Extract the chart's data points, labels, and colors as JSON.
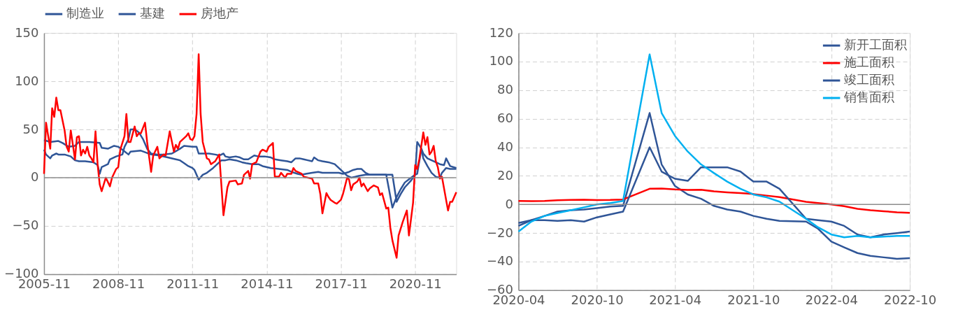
{
  "chart_data": [
    {
      "type": "line",
      "xlim": [
        "2005-11",
        "2022-07"
      ],
      "xticks": [
        "2005-11",
        "2008-11",
        "2011-11",
        "2014-11",
        "2017-11",
        "2020-11"
      ],
      "ylim": [
        -100,
        150
      ],
      "yticks": [
        -100,
        -50,
        0,
        50,
        100,
        150
      ],
      "grid": true,
      "legend": "top",
      "ref_lines": [
        {
          "axis": "y",
          "value": 0,
          "color": "#8c8c8c"
        }
      ],
      "series": [
        {
          "name": "制造业",
          "color": "#2f5597",
          "x": [
            "2005-11",
            "2006-02",
            "2006-06",
            "2006-08",
            "2006-11",
            "2007-02",
            "2007-04",
            "2007-09",
            "2008-02",
            "2008-03",
            "2008-06",
            "2008-09",
            "2008-11",
            "2009-01",
            "2009-04",
            "2009-05",
            "2009-10",
            "2010-03",
            "2010-07",
            "2010-11",
            "2011-03",
            "2011-05",
            "2011-07",
            "2011-09",
            "2011-11",
            "2011-12",
            "2012-02",
            "2012-04",
            "2012-06",
            "2012-09",
            "2012-11",
            "2013-01",
            "2013-03",
            "2013-05",
            "2013-08",
            "2013-11",
            "2014-01",
            "2014-04",
            "2014-07",
            "2014-09",
            "2015-01",
            "2015-05",
            "2015-09",
            "2015-11",
            "2016-02",
            "2016-04",
            "2016-06",
            "2016-09",
            "2016-12",
            "2017-02",
            "2017-04",
            "2017-07",
            "2017-10",
            "2017-12",
            "2018-03",
            "2018-05",
            "2018-07",
            "2018-09",
            "2018-11",
            "2019-01",
            "2019-03",
            "2019-06",
            "2019-09",
            "2019-12",
            "2020-02",
            "2020-04",
            "2020-06",
            "2020-09",
            "2020-11",
            "2020-12",
            "2021-02",
            "2021-03",
            "2021-05",
            "2021-07",
            "2021-09",
            "2021-11",
            "2021-12",
            "2022-02",
            "2022-04",
            "2022-07"
          ],
          "values": [
            39,
            37,
            38,
            36,
            32,
            33,
            37,
            37,
            36,
            31,
            30,
            33,
            32,
            29,
            24,
            27,
            28,
            24,
            23,
            21,
            19,
            18,
            15,
            12,
            10,
            8,
            -2,
            3,
            5,
            10,
            14,
            18,
            18,
            19,
            18,
            16,
            15,
            14,
            14,
            12,
            10,
            9,
            8,
            6,
            4,
            3,
            4,
            5,
            6,
            5,
            5,
            5,
            5,
            4,
            6,
            8,
            9,
            9,
            5,
            3,
            3,
            3,
            3,
            -31,
            -20,
            -12,
            -5,
            0,
            3,
            37,
            30,
            20,
            12,
            5,
            1,
            0,
            5,
            10,
            9,
            9
          ]
        },
        {
          "name": "基建",
          "color": "#2f5597",
          "x": [
            "2005-11",
            "2005-12",
            "2006-02",
            "2006-03",
            "2006-05",
            "2006-06",
            "2006-09",
            "2006-12",
            "2007-02",
            "2007-04",
            "2007-07",
            "2007-11",
            "2008-01",
            "2008-02",
            "2008-03",
            "2008-06",
            "2008-07",
            "2008-10",
            "2009-01",
            "2009-02",
            "2009-04",
            "2009-05",
            "2009-07",
            "2009-09",
            "2009-11",
            "2010-01",
            "2010-03",
            "2010-06",
            "2010-09",
            "2011-01",
            "2011-05",
            "2011-07",
            "2011-11",
            "2012-01",
            "2012-02",
            "2012-07",
            "2012-10",
            "2012-12",
            "2013-02",
            "2013-03",
            "2013-05",
            "2013-08",
            "2013-10",
            "2013-12",
            "2014-02",
            "2014-05",
            "2014-07",
            "2014-10",
            "2015-01",
            "2015-03",
            "2015-06",
            "2015-09",
            "2015-11",
            "2016-01",
            "2016-03",
            "2016-05",
            "2016-07",
            "2016-09",
            "2016-10",
            "2016-12",
            "2017-02",
            "2017-05",
            "2017-08",
            "2017-10",
            "2017-12",
            "2018-02",
            "2018-04",
            "2018-06",
            "2018-08",
            "2018-11",
            "2019-03",
            "2019-08",
            "2019-12",
            "2020-02",
            "2020-04",
            "2020-06",
            "2020-09",
            "2020-11",
            "2020-12",
            "2021-02",
            "2021-03",
            "2021-05",
            "2021-07",
            "2021-09",
            "2021-11",
            "2022-01",
            "2022-02",
            "2022-04",
            "2022-07"
          ],
          "values": [
            29,
            24,
            20,
            23,
            25,
            24,
            24,
            22,
            18,
            17,
            17,
            16,
            13,
            4,
            11,
            14,
            19,
            22,
            24,
            32,
            40,
            50,
            50,
            47,
            40,
            30,
            25,
            24,
            24,
            25,
            30,
            33,
            32,
            32,
            25,
            25,
            24,
            23,
            25,
            22,
            21,
            22,
            21,
            19,
            19,
            23,
            22,
            22,
            21,
            19,
            18,
            17,
            16,
            20,
            20,
            19,
            18,
            17,
            21,
            18,
            17,
            16,
            14,
            10,
            6,
            2,
            0,
            1,
            2,
            3,
            3,
            3,
            3,
            -25,
            -17,
            -10,
            -3,
            3,
            4,
            30,
            25,
            20,
            18,
            16,
            14,
            13,
            20,
            12,
            10
          ]
        },
        {
          "name": "房地产",
          "color": "#ff0000",
          "x": [
            "2005-11",
            "2005-12",
            "2006-02",
            "2006-03",
            "2006-04",
            "2006-05",
            "2006-06",
            "2006-07",
            "2006-09",
            "2006-10",
            "2006-11",
            "2006-12",
            "2007-02",
            "2007-03",
            "2007-04",
            "2007-05",
            "2007-06",
            "2007-07",
            "2007-08",
            "2007-09",
            "2007-10",
            "2007-11",
            "2007-12",
            "2008-01",
            "2008-02",
            "2008-03",
            "2008-05",
            "2008-07",
            "2008-08",
            "2008-10",
            "2008-11",
            "2008-12",
            "2009-02",
            "2009-03",
            "2009-04",
            "2009-05",
            "2009-07",
            "2009-08",
            "2009-09",
            "2009-10",
            "2009-12",
            "2010-01",
            "2010-03",
            "2010-04",
            "2010-06",
            "2010-07",
            "2010-08",
            "2010-09",
            "2010-10",
            "2010-12",
            "2011-02",
            "2011-03",
            "2011-04",
            "2011-05",
            "2011-06",
            "2011-08",
            "2011-09",
            "2011-10",
            "2011-11",
            "2011-12",
            "2012-01",
            "2012-02",
            "2012-03",
            "2012-04",
            "2012-06",
            "2012-07",
            "2012-08",
            "2012-10",
            "2012-12",
            "2013-02",
            "2013-04",
            "2013-05",
            "2013-08",
            "2013-09",
            "2013-11",
            "2013-12",
            "2014-02",
            "2014-03",
            "2014-04",
            "2014-06",
            "2014-08",
            "2014-09",
            "2014-11",
            "2014-12",
            "2015-02",
            "2015-03",
            "2015-05",
            "2015-06",
            "2015-08",
            "2015-09",
            "2015-11",
            "2015-12",
            "2016-01",
            "2016-04",
            "2016-05",
            "2016-07",
            "2016-09",
            "2016-10",
            "2016-12",
            "2017-01",
            "2017-02",
            "2017-04",
            "2017-05",
            "2017-06",
            "2017-08",
            "2017-09",
            "2017-11",
            "2017-12",
            "2018-02",
            "2018-03",
            "2018-04",
            "2018-05",
            "2018-07",
            "2018-08",
            "2018-09",
            "2018-10",
            "2018-12",
            "2019-01",
            "2019-03",
            "2019-05",
            "2019-06",
            "2019-07",
            "2019-09",
            "2019-10",
            "2019-11",
            "2019-12",
            "2020-02",
            "2020-03",
            "2020-05",
            "2020-07",
            "2020-08",
            "2020-10",
            "2020-11",
            "2020-12",
            "2021-01",
            "2021-03",
            "2021-04",
            "2021-05",
            "2021-06",
            "2021-07",
            "2021-08",
            "2021-09",
            "2021-10",
            "2021-11",
            "2021-12",
            "2022-03",
            "2022-04",
            "2022-05",
            "2022-07"
          ],
          "values": [
            4,
            57,
            30,
            72,
            63,
            83,
            70,
            70,
            49,
            32,
            27,
            49,
            19,
            42,
            43,
            23,
            29,
            25,
            32,
            23,
            20,
            16,
            48,
            14,
            -7,
            -14,
            0,
            -9,
            0,
            9,
            11,
            29,
            43,
            66,
            37,
            37,
            53,
            43,
            46,
            46,
            57,
            37,
            6,
            23,
            32,
            20,
            22,
            24,
            23,
            48,
            27,
            34,
            30,
            37,
            39,
            43,
            46,
            40,
            39,
            43,
            66,
            128,
            66,
            37,
            20,
            19,
            14,
            17,
            24,
            -39,
            -10,
            -4,
            -3,
            -7,
            -6,
            3,
            7,
            -1,
            14,
            16,
            27,
            29,
            27,
            32,
            36,
            1,
            1,
            5,
            0,
            4,
            4,
            10,
            7,
            4,
            1,
            0,
            -1,
            -6,
            -6,
            -17,
            -37,
            -16,
            -20,
            -23,
            -26,
            -27,
            -23,
            -17,
            0,
            -2,
            -13,
            -7,
            -4,
            0,
            -9,
            -6,
            -14,
            -11,
            -8,
            -10,
            -18,
            -16,
            -32,
            -31,
            -52,
            -65,
            -83,
            -60,
            -46,
            -34,
            -60,
            -26,
            13,
            9,
            19,
            47,
            34,
            42,
            24,
            27,
            33,
            17,
            11,
            -1,
            1,
            -34,
            -25,
            -25,
            -15
          ]
        }
      ]
    },
    {
      "type": "line",
      "x": [
        "2020-04",
        "2020-05",
        "2020-06",
        "2020-07",
        "2020-08",
        "2020-09",
        "2020-10",
        "2020-11",
        "2020-12",
        "2021-02",
        "2021-03",
        "2021-04",
        "2021-05",
        "2021-06",
        "2021-07",
        "2021-08",
        "2021-09",
        "2021-10",
        "2021-11",
        "2021-12",
        "2022-02",
        "2022-03",
        "2022-04",
        "2022-05",
        "2022-06",
        "2022-07",
        "2022-08",
        "2022-09",
        "2022-10"
      ],
      "xlim": [
        "2020-04",
        "2022-10"
      ],
      "xticks": [
        "2020-04",
        "2020-10",
        "2021-04",
        "2021-10",
        "2022-04",
        "2022-10"
      ],
      "ylim": [
        -60,
        120
      ],
      "yticks": [
        -60,
        -40,
        -20,
        0,
        20,
        40,
        60,
        80,
        100,
        120
      ],
      "grid": true,
      "legend": "top right",
      "ref_lines": [
        {
          "axis": "y",
          "value": 0,
          "color": "#8c8c8c"
        }
      ],
      "series": [
        {
          "name": "新开工面积",
          "color": "#2f5597",
          "values": [
            -15,
            -11,
            -8,
            -5,
            -4,
            -3.5,
            -2.5,
            -1.5,
            -1,
            64,
            28,
            13,
            7,
            4,
            -1,
            -3.5,
            -5,
            -8,
            -10,
            -11.5,
            -12,
            -17,
            -26,
            -30,
            -34,
            -36,
            -37,
            -38,
            -37.5
          ]
        },
        {
          "name": "施工面积",
          "color": "#ff0000",
          "values": [
            2.5,
            2.3,
            2.5,
            3.0,
            3.2,
            3.3,
            3.1,
            3.2,
            3.5,
            11,
            11.2,
            10.5,
            10.2,
            10.3,
            9.2,
            8.5,
            8.0,
            7.3,
            6.2,
            5.2,
            1.9,
            1.0,
            0,
            -1.2,
            -3,
            -4,
            -4.7,
            -5.5,
            -5.8
          ]
        },
        {
          "name": "竣工面积",
          "color": "#2f5597",
          "values": [
            -13,
            -11,
            -11,
            -11.5,
            -11,
            -12,
            -9,
            -7,
            -5,
            40,
            23,
            18,
            16.5,
            26,
            26,
            26,
            23,
            16,
            16,
            11,
            -10,
            -11,
            -12,
            -15,
            -21,
            -23,
            -21,
            -20,
            -19
          ]
        },
        {
          "name": "销售面积",
          "color": "#00b0f0",
          "values": [
            -19,
            -12,
            -8,
            -6,
            -4,
            -2,
            0,
            1,
            2.5,
            105,
            64,
            48,
            37,
            28,
            22,
            16,
            11,
            7,
            5,
            2,
            -10,
            -16,
            -21,
            -23,
            -22,
            -23,
            -22.5,
            -22,
            -22
          ]
        }
      ]
    }
  ]
}
